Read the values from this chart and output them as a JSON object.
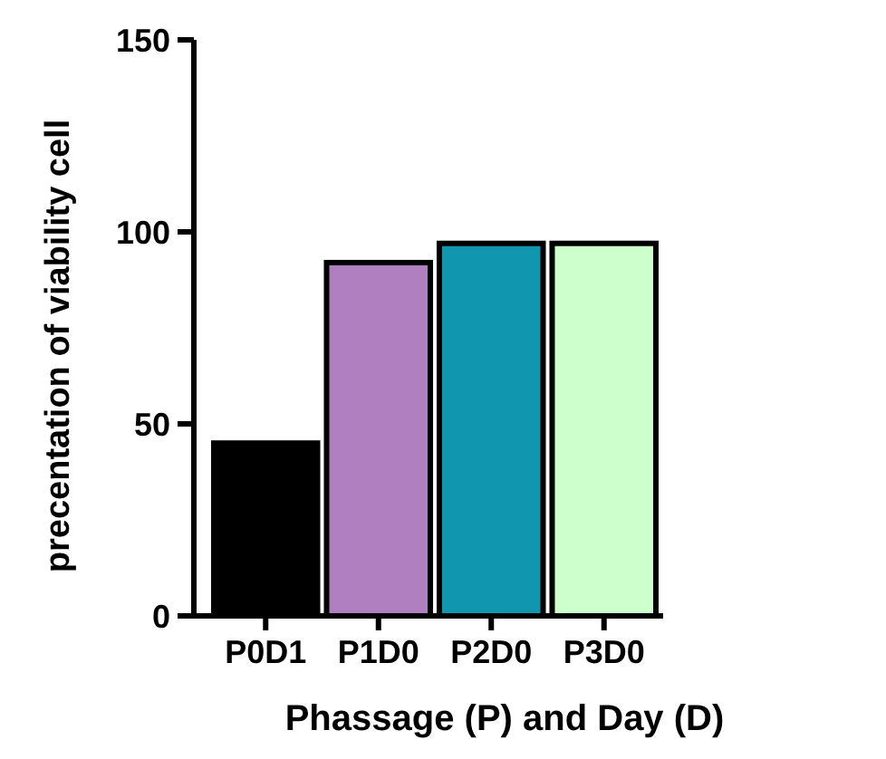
{
  "chart_data": {
    "type": "bar",
    "xlabel": "Phassage (P) and Day (D)",
    "ylabel": "precentation of viability cell",
    "categories": [
      "P0D1",
      "P1D0",
      "P2D0",
      "P3D0"
    ],
    "values": [
      45,
      92,
      97,
      97
    ],
    "colors": [
      "#000000",
      "#b07fbf",
      "#1196b0",
      "#ccffcc"
    ],
    "ylim": [
      0,
      150
    ],
    "yticks": [
      0,
      50,
      100,
      150
    ],
    "grid": false
  }
}
